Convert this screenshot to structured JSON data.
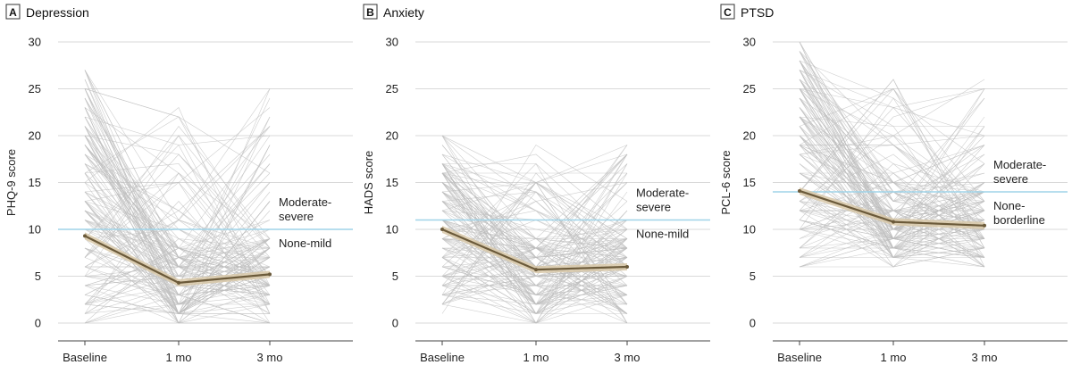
{
  "chart_data": [
    {
      "type": "line",
      "panel_letter": "A",
      "title": "Depression",
      "xlabel": "",
      "ylabel": "PHQ-9 score",
      "categories": [
        "Baseline",
        "1 mo",
        "3 mo"
      ],
      "ylim": [
        0,
        30
      ],
      "yticks": [
        0,
        5,
        10,
        15,
        20,
        25,
        30
      ],
      "grid": true,
      "series": [
        {
          "values": [
            9.3,
            4.3,
            5.2
          ]
        }
      ],
      "threshold": 10,
      "zone_labels": {
        "above": "Moderate-\nsevere",
        "below": "None-mild"
      },
      "individual_lines_note": "many individual participant trajectories shown in light gray",
      "individual_range": {
        "baseline": [
          0,
          27
        ],
        "mo1": [
          0,
          23
        ],
        "mo3": [
          0,
          25
        ]
      }
    },
    {
      "type": "line",
      "panel_letter": "B",
      "title": "Anxiety",
      "xlabel": "",
      "ylabel": "HADS score",
      "categories": [
        "Baseline",
        "1 mo",
        "3 mo"
      ],
      "ylim": [
        0,
        30
      ],
      "yticks": [
        0,
        5,
        10,
        15,
        20,
        25,
        30
      ],
      "grid": true,
      "series": [
        {
          "values": [
            10.0,
            5.7,
            6.0
          ]
        }
      ],
      "threshold": 11,
      "zone_labels": {
        "above": "Moderate-\nsevere",
        "below": "None-mild"
      },
      "individual_range": {
        "baseline": [
          1,
          21
        ],
        "mo1": [
          0,
          19
        ],
        "mo3": [
          0,
          19
        ]
      }
    },
    {
      "type": "line",
      "panel_letter": "C",
      "title": "PTSD",
      "xlabel": "",
      "ylabel": "PCL-6 score",
      "categories": [
        "Baseline",
        "1 mo",
        "3 mo"
      ],
      "ylim": [
        0,
        30
      ],
      "yticks": [
        0,
        5,
        10,
        15,
        20,
        25,
        30
      ],
      "grid": true,
      "series": [
        {
          "values": [
            14.1,
            10.8,
            10.4
          ]
        }
      ],
      "threshold": 14,
      "zone_labels": {
        "above": "Moderate-\nsevere",
        "below": "None-\nborderline"
      },
      "individual_range": {
        "baseline": [
          6,
          30
        ],
        "mo1": [
          6,
          26
        ],
        "mo3": [
          6,
          26
        ]
      }
    }
  ],
  "colors": {
    "grid": "#d9d9d9",
    "individual": "#bdbdbd",
    "threshold": "#9fd3e8",
    "mean_line": "#6b5a3a",
    "mean_band": "#d8c8a8",
    "axis_text": "#222222"
  }
}
